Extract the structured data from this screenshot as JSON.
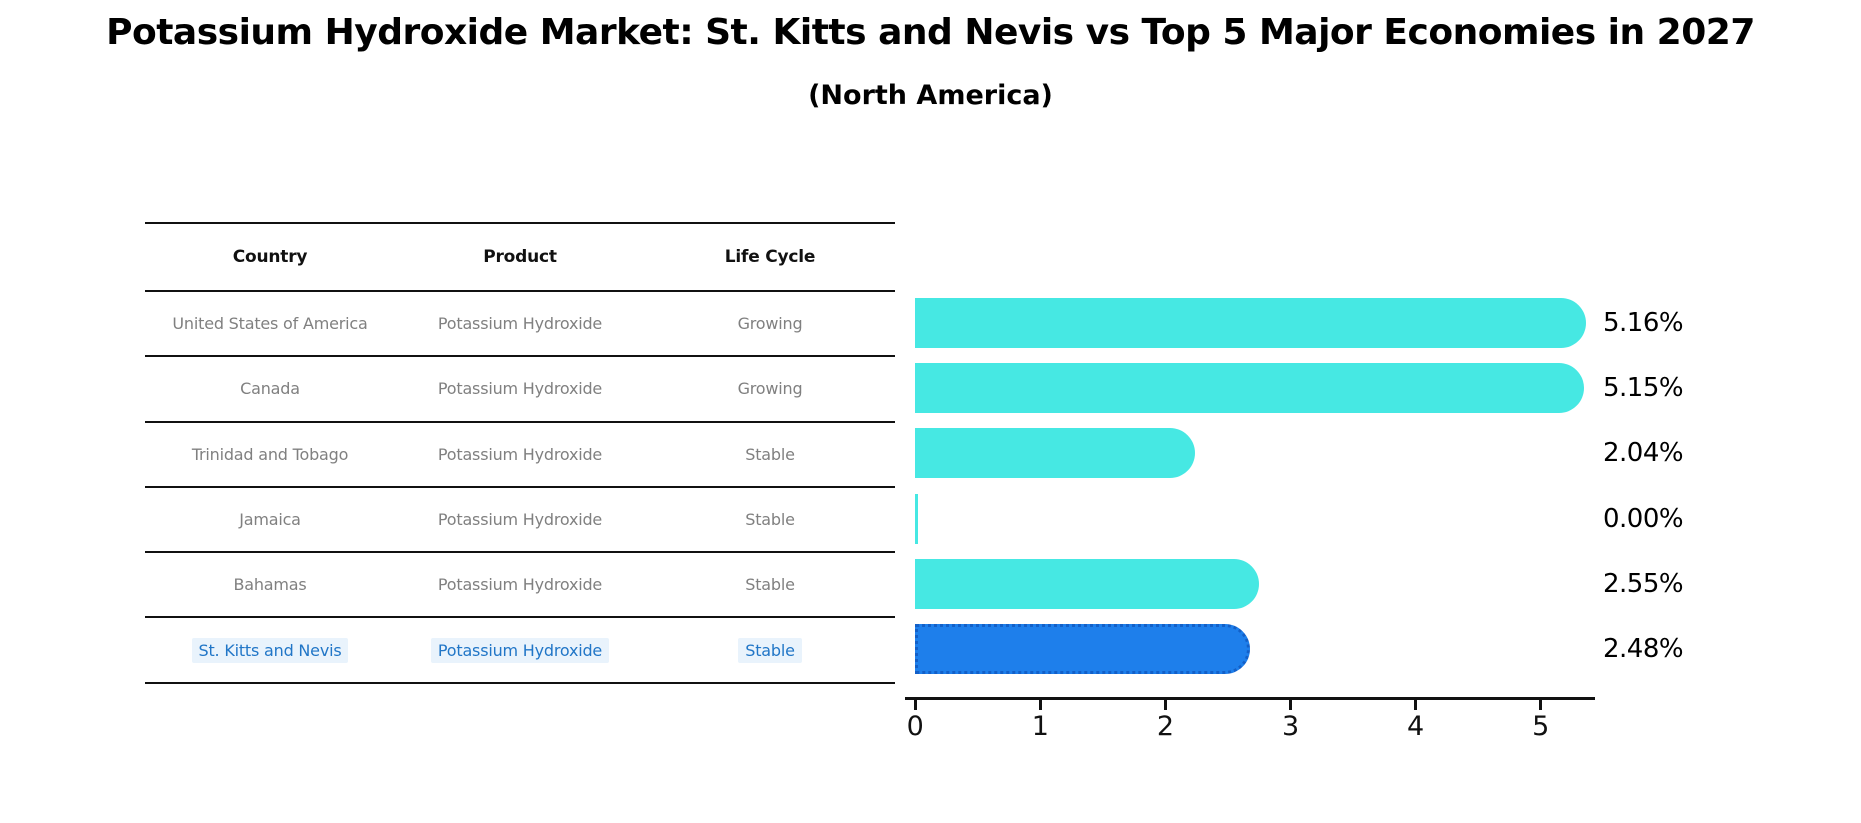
{
  "chart_data": {
    "type": "bar",
    "orientation": "horizontal",
    "title": "Potassium Hydroxide Market: St. Kitts and Nevis vs Top 5 Major Economies in 2027",
    "subtitle": "(North America)",
    "categories": [
      "United States of America",
      "Canada",
      "Trinidad and Tobago",
      "Jamaica",
      "Bahamas",
      "St. Kitts and Nevis"
    ],
    "values": [
      5.16,
      5.15,
      2.04,
      0.0,
      2.55,
      2.48
    ],
    "value_labels": [
      "5.16%",
      "5.15%",
      "2.04%",
      "0.00%",
      "2.55%",
      "2.48%"
    ],
    "xticks": [
      "0",
      "1",
      "2",
      "3",
      "4",
      "5"
    ],
    "xlim": [
      0,
      5.42
    ],
    "grid": false,
    "legend": false,
    "highlight_index": 5,
    "colors": {
      "bar": "#46e8e3",
      "highlight_bar": "#1e7feb",
      "highlight_bar_border": "#1360c8",
      "highlight_text": "#2176c7",
      "highlight_text_bg": "#e9f3fc",
      "row_text": "#808080",
      "header_text": "#111111",
      "axis": "#111111",
      "value_label": "#000000"
    }
  },
  "table": {
    "columns": [
      "Country",
      "Product",
      "Life Cycle"
    ],
    "rows": [
      {
        "country": "United States of America",
        "product": "Potassium Hydroxide",
        "life_cycle": "Growing"
      },
      {
        "country": "Canada",
        "product": "Potassium Hydroxide",
        "life_cycle": "Growing"
      },
      {
        "country": "Trinidad and Tobago",
        "product": "Potassium Hydroxide",
        "life_cycle": "Stable"
      },
      {
        "country": "Jamaica",
        "product": "Potassium Hydroxide",
        "life_cycle": "Stable"
      },
      {
        "country": "Bahamas",
        "product": "Potassium Hydroxide",
        "life_cycle": "Stable"
      },
      {
        "country": "St. Kitts and Nevis",
        "product": "Potassium Hydroxide",
        "life_cycle": "Stable"
      }
    ],
    "highlight_row_index": 5
  }
}
